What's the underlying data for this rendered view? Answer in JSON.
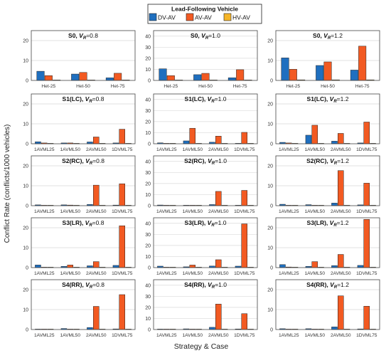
{
  "figure": {
    "ylabel": "Conflict Rate (conflicts/1000 vehicles)",
    "xlabel": "Strategy & Case"
  },
  "legend": {
    "title": "Lead-Following Vehicle",
    "items": [
      {
        "label": "DV-AV",
        "color": "#1f6fbf"
      },
      {
        "label": "AV-AV",
        "color": "#f25a22"
      },
      {
        "label": "HV-AV",
        "color": "#f5b528"
      }
    ]
  },
  "chart_data": [
    {
      "type": "bar",
      "title_prefix": "S0,",
      "title_var": "V",
      "title_sub": "R",
      "title_suffix": "=0.8",
      "categories": [
        "Het-25",
        "Het-50",
        "Het-75"
      ],
      "ylim": [
        0,
        25
      ],
      "yticks": [
        0,
        10,
        20
      ],
      "series": [
        {
          "name": "DV-AV",
          "values": [
            4.6,
            3.2,
            1.3
          ]
        },
        {
          "name": "AV-AV",
          "values": [
            2.4,
            4.0,
            3.6
          ]
        },
        {
          "name": "HV-AV",
          "values": [
            0.1,
            0.1,
            0.1
          ]
        }
      ]
    },
    {
      "type": "bar",
      "title_prefix": "S0,",
      "title_var": "V",
      "title_sub": "R",
      "title_suffix": "=1.0",
      "categories": [
        "Het-25",
        "Het-50",
        "Het-75"
      ],
      "ylim": [
        0,
        45
      ],
      "yticks": [
        0,
        10,
        20,
        30,
        40
      ],
      "series": [
        {
          "name": "DV-AV",
          "values": [
            10.5,
            5.2,
            2.4
          ]
        },
        {
          "name": "AV-AV",
          "values": [
            4.3,
            6.4,
            9.7
          ]
        },
        {
          "name": "HV-AV",
          "values": [
            0.2,
            0.2,
            0.2
          ]
        }
      ]
    },
    {
      "type": "bar",
      "title_prefix": "S0,",
      "title_var": "V",
      "title_sub": "R",
      "title_suffix": "=1.2",
      "categories": [
        "Het-25",
        "Het-50",
        "Het-75"
      ],
      "ylim": [
        0,
        25
      ],
      "yticks": [
        0,
        10,
        20
      ],
      "series": [
        {
          "name": "DV-AV",
          "values": [
            11.3,
            7.5,
            5.2
          ]
        },
        {
          "name": "AV-AV",
          "values": [
            5.6,
            9.3,
            17.2
          ]
        },
        {
          "name": "HV-AV",
          "values": [
            0.3,
            0.3,
            0.3
          ]
        }
      ]
    },
    {
      "type": "bar",
      "title_prefix": "S1(LC),",
      "title_var": "V",
      "title_sub": "R",
      "title_suffix": "=0.8",
      "categories": [
        "1AVML25",
        "1AVML50",
        "2AVML50",
        "1DVML75"
      ],
      "ylim": [
        0,
        25
      ],
      "yticks": [
        0,
        10,
        20
      ],
      "series": [
        {
          "name": "DV-AV",
          "values": [
            1.0,
            0.4,
            0.9,
            0.4
          ]
        },
        {
          "name": "AV-AV",
          "values": [
            0.4,
            0.4,
            3.4,
            7.3
          ]
        },
        {
          "name": "HV-AV",
          "values": [
            0.0,
            0.0,
            0.0,
            0.0
          ]
        }
      ]
    },
    {
      "type": "bar",
      "title_prefix": "S1(LC),",
      "title_var": "V",
      "title_sub": "R",
      "title_suffix": "=1.0",
      "categories": [
        "1AVML25",
        "1AVML50",
        "2AVML50",
        "1DVML75"
      ],
      "ylim": [
        0,
        45
      ],
      "yticks": [
        0,
        10,
        20,
        30,
        40
      ],
      "series": [
        {
          "name": "DV-AV",
          "values": [
            0.8,
            2.6,
            1.4,
            0.4
          ]
        },
        {
          "name": "AV-AV",
          "values": [
            0.2,
            14.0,
            6.9,
            10.3
          ]
        },
        {
          "name": "HV-AV",
          "values": [
            0.0,
            0.0,
            0.0,
            0.0
          ]
        }
      ]
    },
    {
      "type": "bar",
      "title_prefix": "S1(LC),",
      "title_var": "V",
      "title_sub": "R",
      "title_suffix": "=1.2",
      "categories": [
        "1AVML25",
        "1AVML50",
        "2AVML50",
        "1DVML75"
      ],
      "ylim": [
        0,
        25
      ],
      "yticks": [
        0,
        10,
        20
      ],
      "series": [
        {
          "name": "DV-AV",
          "values": [
            0.7,
            4.3,
            1.3,
            0.4
          ]
        },
        {
          "name": "AV-AV",
          "values": [
            0.4,
            9.3,
            5.2,
            10.9
          ]
        },
        {
          "name": "HV-AV",
          "values": [
            0.0,
            0.0,
            0.0,
            0.0
          ]
        }
      ]
    },
    {
      "type": "bar",
      "title_prefix": "S2(RC),",
      "title_var": "V",
      "title_sub": "R",
      "title_suffix": "=0.8",
      "categories": [
        "1AVML25",
        "1AVML50",
        "2AVML50",
        "1DVML75"
      ],
      "ylim": [
        0,
        25
      ],
      "yticks": [
        0,
        10,
        20
      ],
      "series": [
        {
          "name": "DV-AV",
          "values": [
            0.4,
            0.4,
            0.6,
            0.3
          ]
        },
        {
          "name": "AV-AV",
          "values": [
            0.1,
            0.3,
            10.3,
            11.0
          ]
        },
        {
          "name": "HV-AV",
          "values": [
            0.0,
            0.0,
            0.0,
            0.0
          ]
        }
      ]
    },
    {
      "type": "bar",
      "title_prefix": "S2(RC),",
      "title_var": "V",
      "title_sub": "R",
      "title_suffix": "=1.0",
      "categories": [
        "1AVML25",
        "1AVML50",
        "2AVML50",
        "1DVML75"
      ],
      "ylim": [
        0,
        45
      ],
      "yticks": [
        0,
        10,
        20,
        30,
        40
      ],
      "series": [
        {
          "name": "DV-AV",
          "values": [
            0.6,
            0.4,
            1.0,
            0.4
          ]
        },
        {
          "name": "AV-AV",
          "values": [
            0.2,
            0.2,
            12.9,
            13.8
          ]
        },
        {
          "name": "HV-AV",
          "values": [
            0.0,
            0.0,
            0.0,
            0.0
          ]
        }
      ]
    },
    {
      "type": "bar",
      "title_prefix": "S2(RC),",
      "title_var": "V",
      "title_sub": "R",
      "title_suffix": "=1.2",
      "categories": [
        "1AVML25",
        "1AVML50",
        "2AVML50",
        "1DVML75"
      ],
      "ylim": [
        0,
        25
      ],
      "yticks": [
        0,
        10,
        20
      ],
      "series": [
        {
          "name": "DV-AV",
          "values": [
            0.7,
            0.5,
            1.3,
            0.4
          ]
        },
        {
          "name": "AV-AV",
          "values": [
            0.2,
            0.2,
            17.6,
            11.3
          ]
        },
        {
          "name": "HV-AV",
          "values": [
            0.0,
            0.0,
            0.0,
            0.0
          ]
        }
      ]
    },
    {
      "type": "bar",
      "title_prefix": "S3(LR),",
      "title_var": "V",
      "title_sub": "R",
      "title_suffix": "=0.8",
      "categories": [
        "1AVML25",
        "1AVML50",
        "2AVML50",
        "1DVML75"
      ],
      "ylim": [
        0,
        25
      ],
      "yticks": [
        0,
        10,
        20
      ],
      "series": [
        {
          "name": "DV-AV",
          "values": [
            1.3,
            0.6,
            0.9,
            1.1
          ]
        },
        {
          "name": "AV-AV",
          "values": [
            0.2,
            1.3,
            3.0,
            21.0
          ]
        },
        {
          "name": "HV-AV",
          "values": [
            0.0,
            0.0,
            0.0,
            0.0
          ]
        }
      ]
    },
    {
      "type": "bar",
      "title_prefix": "S3(LR),",
      "title_var": "V",
      "title_sub": "R",
      "title_suffix": "=1.0",
      "categories": [
        "1AVML25",
        "1AVML50",
        "2AVML50",
        "1DVML75"
      ],
      "ylim": [
        0,
        45
      ],
      "yticks": [
        0,
        10,
        20,
        30,
        40
      ],
      "series": [
        {
          "name": "DV-AV",
          "values": [
            1.3,
            0.7,
            1.4,
            1.3
          ]
        },
        {
          "name": "AV-AV",
          "values": [
            0.3,
            2.3,
            7.1,
            39.5
          ]
        },
        {
          "name": "HV-AV",
          "values": [
            0.0,
            0.0,
            0.0,
            0.0
          ]
        }
      ]
    },
    {
      "type": "bar",
      "title_prefix": "S3(LR),",
      "title_var": "V",
      "title_sub": "R",
      "title_suffix": "=1.2",
      "categories": [
        "1AVML25",
        "1AVML50",
        "2AVML50",
        "1DVML75"
      ],
      "ylim": [
        0,
        25
      ],
      "yticks": [
        0,
        10,
        20
      ],
      "series": [
        {
          "name": "DV-AV",
          "values": [
            1.5,
            0.6,
            1.0,
            1.1
          ]
        },
        {
          "name": "AV-AV",
          "values": [
            0.3,
            3.0,
            6.6,
            24.2
          ]
        },
        {
          "name": "HV-AV",
          "values": [
            0.0,
            0.0,
            0.0,
            0.0
          ]
        }
      ]
    },
    {
      "type": "bar",
      "title_prefix": "S4(RR),",
      "title_var": "V",
      "title_sub": "R",
      "title_suffix": "=0.8",
      "categories": [
        "1AVML25",
        "1AVML50",
        "2AVML50",
        "1DVML75"
      ],
      "ylim": [
        0,
        25
      ],
      "yticks": [
        0,
        10,
        20
      ],
      "series": [
        {
          "name": "DV-AV",
          "values": [
            0.2,
            0.5,
            1.0,
            0.3
          ]
        },
        {
          "name": "AV-AV",
          "values": [
            0.1,
            0.1,
            11.6,
            17.5
          ]
        },
        {
          "name": "HV-AV",
          "values": [
            0.0,
            0.0,
            0.0,
            0.0
          ]
        }
      ]
    },
    {
      "type": "bar",
      "title_prefix": "S4(RR),",
      "title_var": "V",
      "title_sub": "R",
      "title_suffix": "=1.0",
      "categories": [
        "1AVML25",
        "1AVML50",
        "2AVML50",
        "1DVML75"
      ],
      "ylim": [
        0,
        45
      ],
      "yticks": [
        0,
        10,
        20,
        30,
        40
      ],
      "series": [
        {
          "name": "DV-AV",
          "values": [
            0.4,
            0.6,
            2.0,
            0.5
          ]
        },
        {
          "name": "AV-AV",
          "values": [
            0.2,
            0.2,
            23.0,
            14.3
          ]
        },
        {
          "name": "HV-AV",
          "values": [
            0.0,
            0.0,
            0.0,
            0.0
          ]
        }
      ]
    },
    {
      "type": "bar",
      "title_prefix": "S4(RR),",
      "title_var": "V",
      "title_sub": "R",
      "title_suffix": "=1.2",
      "categories": [
        "1AVML25",
        "1AVML50",
        "2AVML50",
        "1DVML75"
      ],
      "ylim": [
        0,
        25
      ],
      "yticks": [
        0,
        10,
        20
      ],
      "series": [
        {
          "name": "DV-AV",
          "values": [
            0.4,
            0.4,
            1.3,
            0.3
          ]
        },
        {
          "name": "AV-AV",
          "values": [
            0.1,
            0.1,
            16.9,
            11.7
          ]
        },
        {
          "name": "HV-AV",
          "values": [
            0.0,
            0.0,
            0.0,
            0.0
          ]
        }
      ]
    }
  ]
}
